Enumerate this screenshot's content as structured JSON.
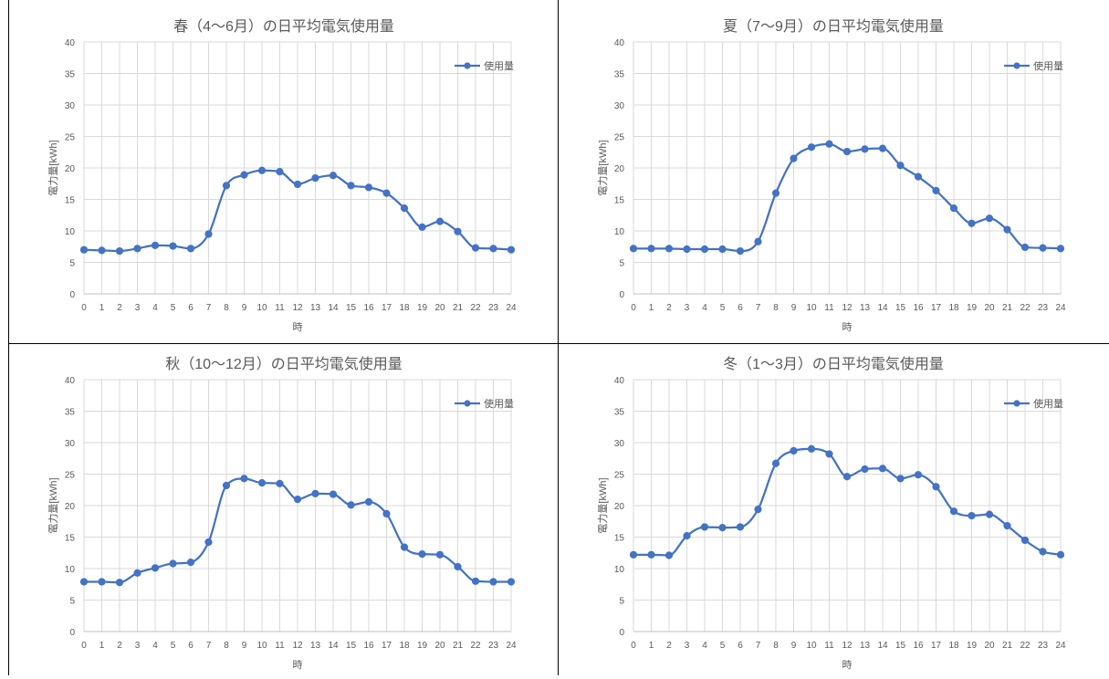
{
  "chart_data": [
    {
      "type": "line",
      "title": "春（4〜6月）の日平均電気使用量",
      "xlabel": "時",
      "ylabel": "電力量[kWh]",
      "ylim": [
        0,
        40
      ],
      "yticks": [
        0,
        5,
        10,
        15,
        20,
        25,
        30,
        35,
        40
      ],
      "grid": true,
      "legend_position": "top-right",
      "x": [
        0,
        1,
        2,
        3,
        4,
        5,
        6,
        7,
        8,
        9,
        10,
        11,
        12,
        13,
        14,
        15,
        16,
        17,
        18,
        19,
        20,
        21,
        22,
        23,
        24
      ],
      "series": [
        {
          "name": "使用量",
          "color": "#4472C4",
          "values": [
            7.0,
            6.9,
            6.8,
            7.2,
            7.7,
            7.6,
            7.2,
            9.5,
            17.2,
            18.9,
            19.6,
            19.4,
            17.4,
            18.4,
            18.8,
            17.2,
            16.9,
            16.0,
            13.6,
            10.6,
            11.5,
            9.9,
            7.3,
            7.2,
            7.0
          ]
        }
      ]
    },
    {
      "type": "line",
      "title": "夏（7〜9月）の日平均電気使用量",
      "xlabel": "時",
      "ylabel": "電力量[kWh]",
      "ylim": [
        0,
        40
      ],
      "yticks": [
        0,
        5,
        10,
        15,
        20,
        25,
        30,
        35,
        40
      ],
      "grid": true,
      "legend_position": "top-right",
      "x": [
        0,
        1,
        2,
        3,
        4,
        5,
        6,
        7,
        8,
        9,
        10,
        11,
        12,
        13,
        14,
        15,
        16,
        17,
        18,
        19,
        20,
        21,
        22,
        23,
        24
      ],
      "series": [
        {
          "name": "使用量",
          "color": "#4472C4",
          "values": [
            7.2,
            7.2,
            7.2,
            7.1,
            7.1,
            7.1,
            6.8,
            8.3,
            16.0,
            21.5,
            23.3,
            23.8,
            22.6,
            23.0,
            23.1,
            20.4,
            18.6,
            16.4,
            13.6,
            11.2,
            12.0,
            10.2,
            7.4,
            7.3,
            7.2
          ]
        }
      ]
    },
    {
      "type": "line",
      "title": "秋（10〜12月）の日平均電気使用量",
      "xlabel": "時",
      "ylabel": "電力量[kWh]",
      "ylim": [
        0,
        40
      ],
      "yticks": [
        0,
        5,
        10,
        15,
        20,
        25,
        30,
        35,
        40
      ],
      "grid": true,
      "legend_position": "top-right",
      "x": [
        0,
        1,
        2,
        3,
        4,
        5,
        6,
        7,
        8,
        9,
        10,
        11,
        12,
        13,
        14,
        15,
        16,
        17,
        18,
        19,
        20,
        21,
        22,
        23,
        24
      ],
      "series": [
        {
          "name": "使用量",
          "color": "#4472C4",
          "values": [
            7.9,
            7.9,
            7.8,
            9.3,
            10.1,
            10.8,
            11.0,
            14.2,
            23.2,
            24.3,
            23.6,
            23.5,
            21.0,
            21.9,
            21.8,
            20.1,
            20.6,
            18.7,
            13.4,
            12.3,
            12.2,
            10.3,
            8.0,
            7.9,
            7.9
          ]
        }
      ]
    },
    {
      "type": "line",
      "title": "冬（1〜3月）の日平均電気使用量",
      "xlabel": "時",
      "ylabel": "電力量[kWh]",
      "ylim": [
        0,
        40
      ],
      "yticks": [
        0,
        5,
        10,
        15,
        20,
        25,
        30,
        35,
        40
      ],
      "grid": true,
      "legend_position": "top-right",
      "x": [
        0,
        1,
        2,
        3,
        4,
        5,
        6,
        7,
        8,
        9,
        10,
        11,
        12,
        13,
        14,
        15,
        16,
        17,
        18,
        19,
        20,
        21,
        22,
        23,
        24
      ],
      "series": [
        {
          "name": "使用量",
          "color": "#4472C4",
          "values": [
            12.2,
            12.2,
            12.1,
            15.2,
            16.6,
            16.5,
            16.6,
            19.4,
            26.7,
            28.7,
            29.0,
            28.2,
            24.6,
            25.8,
            25.9,
            24.3,
            24.9,
            23.0,
            19.1,
            18.4,
            18.6,
            16.8,
            14.5,
            12.7,
            12.2
          ]
        }
      ]
    }
  ]
}
